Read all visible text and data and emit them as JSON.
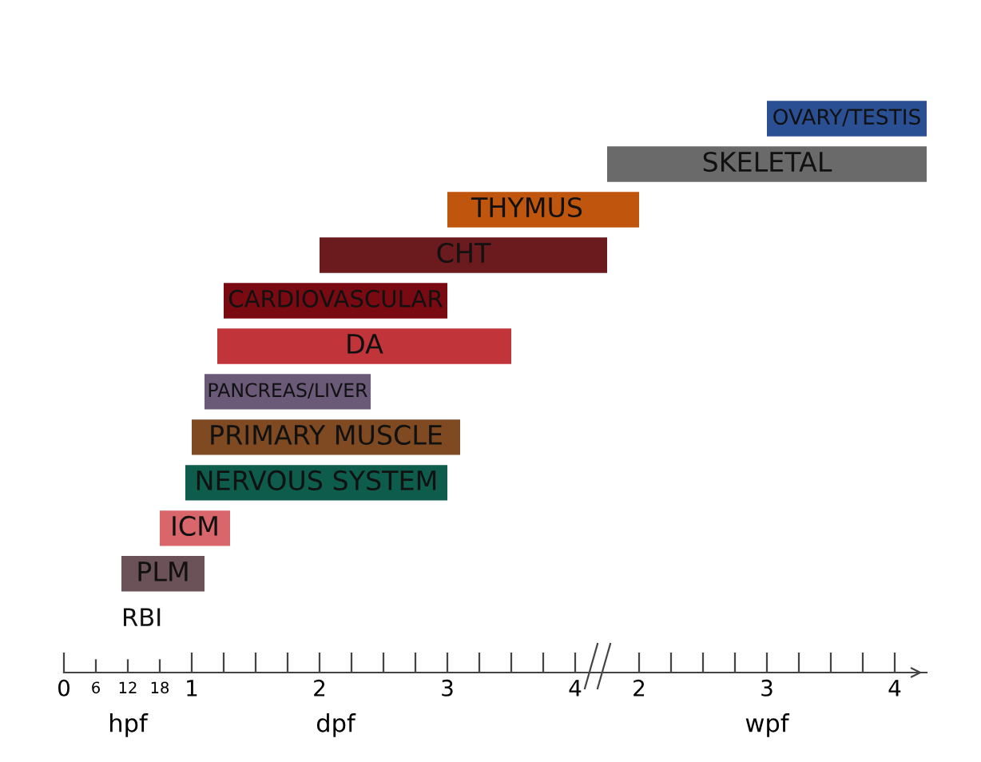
{
  "chart_data": [
    {
      "type": "bar",
      "orientation": "horizontal",
      "tick_labels": "x",
      "xlabel": "dpf",
      "x2label": "hpf",
      "categories": [
        null,
        null,
        "THYMUS",
        "CHT",
        "CARDIOVASCULAR",
        "DA",
        "PANCREAS/LIVER",
        "PRIMARY MUSCLE",
        "NERVOUS SYSTEM",
        "ICM",
        "PLM",
        "RBI"
      ],
      "base": [
        null,
        null,
        3,
        2,
        1.25,
        1.2,
        1.1,
        1,
        0.95,
        0.75,
        0.45,
        null
      ],
      "values": [
        null,
        null,
        1.25,
        2.25,
        1.75,
        2.3,
        1.3,
        2.1,
        2.05,
        0.55,
        0.65,
        null
      ],
      "colors": [
        "#2a4f93",
        "#6a6a6a",
        "#c0550e",
        "#6b1a1e",
        "#7a0a12",
        "#c0343a",
        "#6a5a78",
        "#7f4a22",
        "#0d5c4c",
        "#d9666a",
        "#6a5258",
        "#ffffff"
      ],
      "xlim": [
        0,
        4.25
      ],
      "xticks": [
        0,
        1,
        {
          "value": 1.25,
          "label": null
        },
        {
          "value": 1.5,
          "label": null
        },
        {
          "value": 1.75,
          "label": null
        },
        2,
        {
          "value": 2.25,
          "label": null
        },
        {
          "value": 2.5,
          "label": null
        },
        {
          "value": 2.75,
          "label": null
        },
        3,
        {
          "value": 3.25,
          "label": null
        },
        {
          "value": 3.5,
          "label": null
        },
        {
          "value": 3.75,
          "label": null
        },
        4
      ],
      "x2lim": [
        0,
        102
      ],
      "x2ticks": [
        6,
        12,
        18
      ]
    },
    {
      "type": "bar",
      "orientation": "horizontal",
      "tick_labels": "x",
      "xlabel": "wpf",
      "categories": [
        "OVARY/TESTIS",
        "SKELETAL",
        null,
        null,
        null,
        null,
        null,
        null,
        null,
        null,
        null,
        null
      ],
      "base": [
        3,
        1.75,
        1.75,
        null,
        null,
        null,
        null,
        null,
        null,
        null,
        null,
        null
      ],
      "values": [
        1.25,
        2.5,
        0.25,
        null,
        null,
        null,
        null,
        null,
        null,
        null,
        null,
        null
      ],
      "colors": [
        "#2a4f93",
        "#6a6a6a",
        "#c0550e",
        "#6b1a1e",
        "#7a0a12",
        "#c0343a",
        "#6a5a78",
        "#7f4a22",
        "#0d5c4c",
        "#d9666a",
        "#6a5258",
        "#ffffff"
      ],
      "xlim": [
        1.75,
        4.25
      ],
      "xticks": [
        2,
        {
          "value": 2.25,
          "label": null
        },
        {
          "value": 2.5,
          "label": null
        },
        {
          "value": 2.75,
          "label": null
        },
        3,
        {
          "value": 3.25,
          "label": null
        },
        {
          "value": 3.5,
          "label": null
        },
        {
          "value": 3.75,
          "label": null
        },
        4
      ]
    }
  ]
}
